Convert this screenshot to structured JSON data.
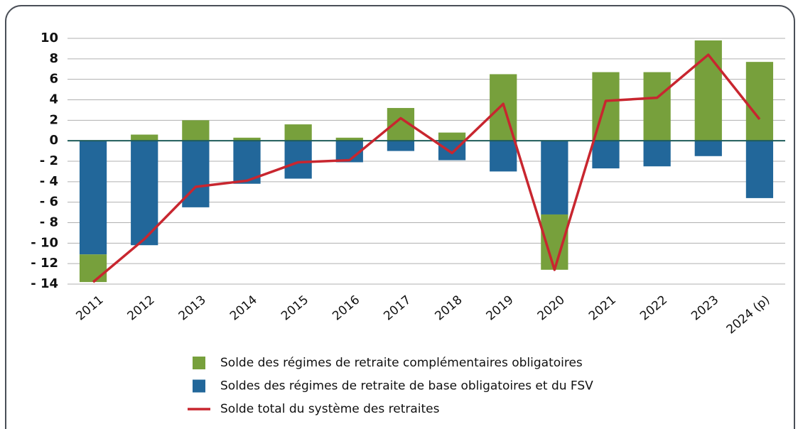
{
  "chart_data": {
    "type": "bar",
    "stacked": true,
    "categories": [
      "2011",
      "2012",
      "2013",
      "2014",
      "2015",
      "2016",
      "2017",
      "2018",
      "2019",
      "2020",
      "2021",
      "2022",
      "2023",
      "2024 (p)"
    ],
    "series": [
      {
        "name": "Solde des régimes de retraite complémentaires obligatoires",
        "color": "#77a03c",
        "values": [
          -2.7,
          0.6,
          2.0,
          0.3,
          1.6,
          0.3,
          3.2,
          0.8,
          6.5,
          -5.4,
          6.7,
          6.7,
          9.8,
          7.7
        ]
      },
      {
        "name": "Soldes des régimes de retraite de base obligatoires et du FSV",
        "color": "#22679a",
        "values": [
          -11.1,
          -10.2,
          -6.5,
          -4.2,
          -3.7,
          -2.1,
          -1.0,
          -1.9,
          -3.0,
          -7.2,
          -2.7,
          -2.5,
          -1.5,
          -5.6
        ]
      },
      {
        "name": "Solde total du système des retraites",
        "color": "#c8262f",
        "type": "line",
        "values": [
          -13.8,
          -9.6,
          -4.5,
          -3.9,
          -2.1,
          -1.9,
          2.2,
          -1.2,
          3.6,
          -12.6,
          3.9,
          4.2,
          8.4,
          2.1
        ]
      }
    ],
    "ylim": [
      -14,
      10
    ],
    "yticks": [
      {
        "value": -14,
        "label": "- 14"
      },
      {
        "value": -12,
        "label": "- 12"
      },
      {
        "value": -10,
        "label": "- 10"
      },
      {
        "value": -8,
        "label": "- 8"
      },
      {
        "value": -6,
        "label": "- 6"
      },
      {
        "value": -4,
        "label": "- 4"
      },
      {
        "value": -2,
        "label": "- 2"
      },
      0,
      2,
      4,
      6,
      8,
      10
    ],
    "grid": true,
    "legend": "bottom"
  }
}
